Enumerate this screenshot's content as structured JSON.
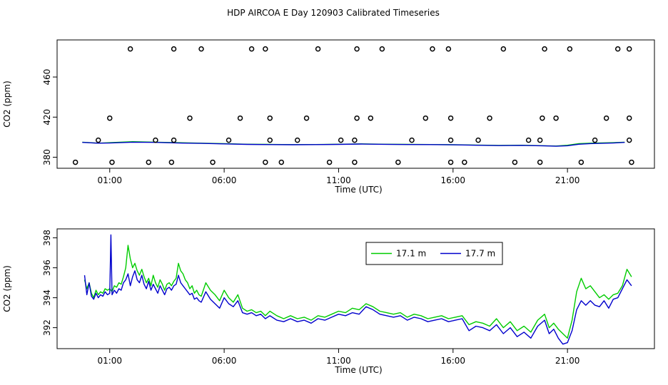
{
  "title": "HDP AIRCOA E  Day 120903  Calibrated Timeseries",
  "colors": {
    "green": "#00cc00",
    "blue": "#0000cc",
    "axis": "#000000"
  },
  "chart_data": [
    {
      "type": "line",
      "panel": "top",
      "xlabel": "Time (UTC)",
      "ylabel": "CO2 (ppm)",
      "x_unit": "hours UTC",
      "xlim": [
        -1.3,
        24.8
      ],
      "ylim": [
        369,
        497
      ],
      "x_ticks": [
        {
          "value": 1,
          "label": "01:00"
        },
        {
          "value": 6,
          "label": "06:00"
        },
        {
          "value": 11,
          "label": "11:00"
        },
        {
          "value": 16,
          "label": "16:00"
        },
        {
          "value": 21,
          "label": "21:00"
        }
      ],
      "y_ticks": [
        {
          "value": 380,
          "label": "380"
        },
        {
          "value": 420,
          "label": "420"
        },
        {
          "value": 460,
          "label": "460"
        }
      ],
      "grid": false,
      "series": [
        {
          "color": "#00cc00",
          "x": [
            -0.2,
            0.5,
            1.0,
            2.0,
            3.0,
            4.0,
            5.0,
            6.0,
            7.0,
            8.0,
            9.0,
            10.0,
            11.0,
            12.0,
            13.0,
            14.0,
            15.0,
            16.0,
            17.0,
            18.0,
            19.0,
            20.0,
            20.5,
            21.0,
            21.5,
            22.0,
            23.0,
            23.5
          ],
          "y": [
            395,
            394,
            394.5,
            395.5,
            395,
            394.5,
            394,
            393.5,
            393,
            392.8,
            392.6,
            392.7,
            393,
            393.3,
            393,
            392.8,
            392.7,
            392.5,
            392.2,
            391.8,
            392.0,
            391.5,
            391.2,
            392,
            393.5,
            394,
            394.5,
            395
          ]
        },
        {
          "color": "#0000cc",
          "x": [
            -0.2,
            0.5,
            1.0,
            2.0,
            3.0,
            4.0,
            5.0,
            6.0,
            7.0,
            8.0,
            9.0,
            10.0,
            11.0,
            12.0,
            13.0,
            14.0,
            15.0,
            16.0,
            17.0,
            18.0,
            19.0,
            20.0,
            20.5,
            21.0,
            21.5,
            22.0,
            23.0,
            23.5
          ],
          "y": [
            394.8,
            394,
            394.2,
            395,
            394.8,
            394.2,
            393.8,
            393.3,
            392.8,
            392.6,
            392.5,
            392.6,
            392.8,
            393.2,
            392.9,
            392.7,
            392.6,
            392.4,
            392.0,
            391.6,
            391.8,
            391.3,
            391,
            391.5,
            393,
            393.6,
            394.2,
            394.8
          ]
        }
      ],
      "markers": {
        "symbol": "open-circle",
        "x": [
          -0.5,
          1.1,
          2.7,
          3.7,
          5.5,
          7.8,
          8.5,
          10.6,
          11.7,
          13.6,
          15.9,
          16.5,
          18.7,
          19.8,
          21.6,
          23.8,
          0.5,
          3.0,
          3.8,
          6.2,
          8.0,
          9.2,
          11.1,
          11.7,
          14.2,
          15.9,
          17.1,
          19.3,
          19.8,
          22.2,
          23.7,
          1.0,
          4.5,
          6.7,
          8.0,
          9.6,
          11.8,
          12.4,
          14.8,
          15.9,
          17.6,
          19.9,
          20.5,
          22.7,
          23.7,
          1.9,
          3.8,
          5.0,
          7.2,
          7.8,
          10.1,
          11.8,
          12.9,
          15.1,
          15.8,
          18.2,
          20.0,
          21.1,
          23.2,
          23.7
        ],
        "y": [
          375,
          375,
          375,
          375,
          375,
          375,
          375,
          375,
          375,
          375,
          375,
          375,
          375,
          375,
          375,
          375,
          397,
          397,
          397,
          397,
          397,
          397,
          397,
          397,
          397,
          397,
          397,
          397,
          397,
          397,
          397,
          419,
          419,
          419,
          419,
          419,
          419,
          419,
          419,
          419,
          419,
          419,
          419,
          419,
          419,
          488,
          488,
          488,
          488,
          488,
          488,
          488,
          488,
          488,
          488,
          488,
          488,
          488,
          488,
          488
        ]
      }
    },
    {
      "type": "line",
      "panel": "bottom",
      "xlabel": "Time (UTC)",
      "ylabel": "CO2 (ppm)",
      "x_unit": "hours UTC",
      "xlim": [
        -1.3,
        24.8
      ],
      "ylim": [
        390.6,
        398.6
      ],
      "x_ticks": [
        {
          "value": 1,
          "label": "01:00"
        },
        {
          "value": 6,
          "label": "06:00"
        },
        {
          "value": 11,
          "label": "11:00"
        },
        {
          "value": 16,
          "label": "16:00"
        },
        {
          "value": 21,
          "label": "21:00"
        }
      ],
      "y_ticks": [
        {
          "value": 392,
          "label": "392"
        },
        {
          "value": 394,
          "label": "394"
        },
        {
          "value": 396,
          "label": "396"
        },
        {
          "value": 398,
          "label": "398"
        }
      ],
      "grid": false,
      "legend_position": "top-center",
      "series": [
        {
          "name": "17.1 m",
          "color": "#00cc00",
          "x": [
            -0.1,
            0.0,
            0.1,
            0.2,
            0.3,
            0.4,
            0.5,
            0.6,
            0.7,
            0.8,
            0.9,
            1.0,
            1.1,
            1.2,
            1.3,
            1.4,
            1.5,
            1.6,
            1.7,
            1.8,
            1.9,
            2.0,
            2.1,
            2.2,
            2.3,
            2.4,
            2.5,
            2.6,
            2.7,
            2.8,
            2.9,
            3.0,
            3.1,
            3.2,
            3.3,
            3.4,
            3.5,
            3.6,
            3.7,
            3.8,
            3.9,
            4.0,
            4.1,
            4.2,
            4.3,
            4.4,
            4.5,
            4.6,
            4.7,
            4.8,
            4.9,
            5.0,
            5.2,
            5.4,
            5.6,
            5.8,
            6.0,
            6.2,
            6.4,
            6.6,
            6.8,
            7.0,
            7.2,
            7.4,
            7.6,
            7.8,
            8.0,
            8.3,
            8.6,
            8.9,
            9.2,
            9.5,
            9.8,
            10.1,
            10.4,
            10.7,
            11.0,
            11.3,
            11.6,
            11.9,
            12.2,
            12.5,
            12.8,
            13.1,
            13.4,
            13.7,
            14.0,
            14.3,
            14.6,
            14.9,
            15.2,
            15.5,
            15.8,
            16.1,
            16.4,
            16.7,
            17.0,
            17.3,
            17.6,
            17.9,
            18.2,
            18.5,
            18.8,
            19.1,
            19.4,
            19.7,
            20.0,
            20.2,
            20.4,
            20.6,
            20.8,
            21.0,
            21.2,
            21.4,
            21.6,
            21.8,
            22.0,
            22.2,
            22.4,
            22.6,
            22.8,
            23.0,
            23.2,
            23.4,
            23.6,
            23.8
          ],
          "y": [
            395.2,
            394.6,
            395.0,
            394.3,
            394.0,
            394.5,
            394.2,
            394.4,
            394.3,
            394.6,
            394.5,
            394.6,
            394.4,
            394.8,
            394.7,
            395.0,
            394.9,
            395.4,
            396.0,
            397.5,
            396.6,
            396.0,
            396.3,
            395.8,
            395.5,
            395.9,
            395.4,
            395.0,
            395.3,
            394.8,
            395.5,
            395.0,
            394.7,
            395.2,
            394.9,
            394.5,
            394.9,
            395.0,
            394.8,
            395.1,
            395.3,
            396.3,
            395.8,
            395.6,
            395.2,
            395.0,
            394.6,
            394.8,
            394.3,
            394.5,
            394.2,
            394.1,
            395.0,
            394.5,
            394.2,
            393.8,
            394.5,
            394.0,
            393.7,
            394.2,
            393.3,
            393.1,
            393.2,
            393.0,
            393.1,
            392.8,
            393.1,
            392.8,
            392.6,
            392.8,
            392.6,
            392.7,
            392.5,
            392.8,
            392.7,
            392.9,
            393.1,
            393.0,
            393.3,
            393.2,
            393.6,
            393.4,
            393.1,
            393.0,
            392.9,
            393.0,
            392.7,
            392.9,
            392.8,
            392.6,
            392.7,
            392.8,
            392.6,
            392.7,
            392.8,
            392.2,
            392.4,
            392.3,
            392.1,
            392.6,
            392.0,
            392.4,
            391.8,
            392.1,
            391.7,
            392.5,
            392.9,
            392.0,
            392.3,
            391.9,
            391.6,
            391.3,
            392.5,
            394.4,
            395.3,
            394.6,
            394.8,
            394.4,
            394.0,
            394.2,
            393.9,
            394.2,
            394.3,
            394.8,
            395.9,
            395.4
          ]
        },
        {
          "name": "17.7 m",
          "color": "#0000cc",
          "x": [
            -0.1,
            0.0,
            0.1,
            0.2,
            0.3,
            0.4,
            0.5,
            0.6,
            0.7,
            0.8,
            0.9,
            1.0,
            1.05,
            1.1,
            1.2,
            1.3,
            1.4,
            1.5,
            1.6,
            1.7,
            1.8,
            1.9,
            2.0,
            2.1,
            2.2,
            2.3,
            2.4,
            2.5,
            2.6,
            2.7,
            2.8,
            2.9,
            3.0,
            3.1,
            3.2,
            3.3,
            3.4,
            3.5,
            3.6,
            3.7,
            3.8,
            3.9,
            4.0,
            4.1,
            4.2,
            4.3,
            4.4,
            4.5,
            4.6,
            4.7,
            4.8,
            4.9,
            5.0,
            5.2,
            5.4,
            5.6,
            5.8,
            6.0,
            6.2,
            6.4,
            6.6,
            6.8,
            7.0,
            7.2,
            7.4,
            7.6,
            7.8,
            8.0,
            8.3,
            8.6,
            8.9,
            9.2,
            9.5,
            9.8,
            10.1,
            10.4,
            10.7,
            11.0,
            11.3,
            11.6,
            11.9,
            12.2,
            12.5,
            12.8,
            13.1,
            13.4,
            13.7,
            14.0,
            14.3,
            14.6,
            14.9,
            15.2,
            15.5,
            15.8,
            16.1,
            16.4,
            16.7,
            17.0,
            17.3,
            17.6,
            17.9,
            18.2,
            18.5,
            18.8,
            19.1,
            19.4,
            19.7,
            20.0,
            20.2,
            20.4,
            20.6,
            20.8,
            21.0,
            21.2,
            21.4,
            21.6,
            21.8,
            22.0,
            22.2,
            22.4,
            22.6,
            22.8,
            23.0,
            23.2,
            23.4,
            23.6,
            23.8
          ],
          "y": [
            395.5,
            394.2,
            395.0,
            394.1,
            393.9,
            394.3,
            394.0,
            394.2,
            394.1,
            394.4,
            394.2,
            394.3,
            398.2,
            394.2,
            394.5,
            394.3,
            394.6,
            394.5,
            395.0,
            395.2,
            395.6,
            394.8,
            395.4,
            395.8,
            395.2,
            395.0,
            395.5,
            394.9,
            394.6,
            395.1,
            394.5,
            394.9,
            394.6,
            394.3,
            394.8,
            394.5,
            394.2,
            394.6,
            394.7,
            394.5,
            394.8,
            394.9,
            395.5,
            395.0,
            394.8,
            394.6,
            394.4,
            394.2,
            394.3,
            393.9,
            394.0,
            393.8,
            393.7,
            394.4,
            393.9,
            393.6,
            393.3,
            394.0,
            393.6,
            393.4,
            393.8,
            393.0,
            392.9,
            393.0,
            392.8,
            392.9,
            392.6,
            392.8,
            392.5,
            392.4,
            392.6,
            392.4,
            392.5,
            392.3,
            392.6,
            392.5,
            392.7,
            392.9,
            392.8,
            393.0,
            392.9,
            393.4,
            393.2,
            392.9,
            392.8,
            392.7,
            392.8,
            392.5,
            392.7,
            392.6,
            392.4,
            392.5,
            392.6,
            392.4,
            392.5,
            392.6,
            391.8,
            392.1,
            392.0,
            391.8,
            392.2,
            391.6,
            392.0,
            391.4,
            391.7,
            391.3,
            392.1,
            392.5,
            391.6,
            391.9,
            391.3,
            390.9,
            391.0,
            391.8,
            393.2,
            393.8,
            393.5,
            393.8,
            393.5,
            393.4,
            393.8,
            393.3,
            393.9,
            394.0,
            394.6,
            395.2,
            394.8
          ]
        }
      ]
    }
  ]
}
